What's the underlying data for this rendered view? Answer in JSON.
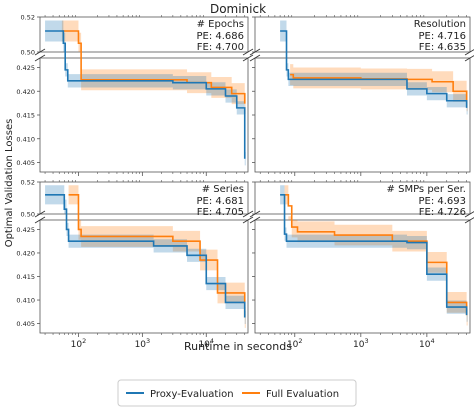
{
  "title": "Dominick",
  "ylabel": "Optimal Validation Losses",
  "xlabel": "Runtime in seconds",
  "legend": [
    {
      "name": "Proxy-Evaluation",
      "color": "#1f77b4"
    },
    {
      "name": "Full Evaluation",
      "color": "#ff7f0e"
    }
  ],
  "colors": {
    "proxy": "#1f77b4",
    "full": "#ff7f0e"
  },
  "chart_data": [
    {
      "type": "line",
      "title": "# Epochs",
      "annotations": [
        "PE: 4.686",
        "FE: 4.700"
      ],
      "xscale": "log",
      "xlim": [
        25,
        45000
      ],
      "xticks": [
        "10^2",
        "10^3",
        "10^4"
      ],
      "ylim_upper": [
        0.5,
        0.52
      ],
      "yticks_upper": [
        "0.52",
        "0.50"
      ],
      "ylim_lower": [
        0.403,
        0.427
      ],
      "yticks_lower": [
        "0.425",
        "0.420",
        "0.415",
        "0.410",
        "0.405"
      ],
      "series": [
        {
          "name": "Proxy-Evaluation",
          "x": [
            30,
            58,
            62,
            68,
            600,
            3000,
            10000,
            20000,
            30000,
            40000
          ],
          "y": [
            0.512,
            0.505,
            0.4245,
            0.4222,
            0.4222,
            0.4218,
            0.4205,
            0.419,
            0.4165,
            0.4058
          ]
        },
        {
          "name": "Full Evaluation",
          "x": [
            55,
            100,
            110,
            1000,
            5000,
            12000,
            25000,
            40000
          ],
          "y": [
            0.512,
            0.505,
            0.4224,
            0.4224,
            0.4218,
            0.4208,
            0.4195,
            0.4174
          ]
        }
      ]
    },
    {
      "type": "line",
      "title": "Resolution",
      "annotations": [
        "PE: 4.716",
        "FE: 4.635"
      ],
      "xscale": "log",
      "xlim": [
        25,
        45000
      ],
      "xticks": [
        "10^2",
        "10^3",
        "10^4"
      ],
      "ylim_upper": [
        0.5,
        0.52
      ],
      "ylim_lower": [
        0.403,
        0.427
      ],
      "series": [
        {
          "name": "Proxy-Evaluation",
          "x": [
            60,
            75,
            80,
            2500,
            5000,
            10000,
            20000,
            40000
          ],
          "y": [
            0.512,
            0.4245,
            0.4225,
            0.4225,
            0.4205,
            0.4195,
            0.418,
            0.4165
          ]
        },
        {
          "name": "Full Evaluation",
          "x": [
            85,
            95,
            1000,
            5000,
            12000,
            25000,
            40000
          ],
          "y": [
            0.4235,
            0.4228,
            0.4226,
            0.4225,
            0.422,
            0.42,
            0.418
          ]
        }
      ]
    },
    {
      "type": "line",
      "title": "# Series",
      "annotations": [
        "PE: 4.681",
        "FE: 4.705"
      ],
      "xscale": "log",
      "xlim": [
        25,
        45000
      ],
      "xticks": [
        "10^2",
        "10^3",
        "10^4"
      ],
      "ylim_upper": [
        0.5,
        0.52
      ],
      "yticks_upper": [
        "0.52",
        "0.50"
      ],
      "ylim_lower": [
        0.403,
        0.427
      ],
      "yticks_lower": [
        "0.425",
        "0.420",
        "0.415",
        "0.410",
        "0.405"
      ],
      "series": [
        {
          "name": "Proxy-Evaluation",
          "x": [
            30,
            60,
            65,
            70,
            1500,
            5000,
            10000,
            20000,
            40000
          ],
          "y": [
            0.512,
            0.503,
            0.425,
            0.4225,
            0.4215,
            0.4195,
            0.4135,
            0.4095,
            0.4063
          ]
        },
        {
          "name": "Full Evaluation",
          "x": [
            70,
            100,
            110,
            1500,
            3000,
            8000,
            15000,
            40000
          ],
          "y": [
            0.512,
            0.425,
            0.4235,
            0.4235,
            0.4225,
            0.4185,
            0.4115,
            0.4063
          ]
        }
      ]
    },
    {
      "type": "line",
      "title": "# SMPs per Ser.",
      "annotations": [
        "PE: 4.693",
        "FE: 4.726"
      ],
      "xscale": "log",
      "xlim": [
        25,
        45000
      ],
      "xticks": [
        "10^2",
        "10^3",
        "10^4"
      ],
      "ylim_upper": [
        0.5,
        0.52
      ],
      "ylim_lower": [
        0.403,
        0.427
      ],
      "series": [
        {
          "name": "Proxy-Evaluation",
          "x": [
            60,
            70,
            75,
            800,
            5000,
            10000,
            20000,
            40000
          ],
          "y": [
            0.512,
            0.424,
            0.4225,
            0.4225,
            0.4222,
            0.4155,
            0.4085,
            0.4068
          ]
        },
        {
          "name": "Full Evaluation",
          "x": [
            70,
            80,
            90,
            110,
            400,
            3000,
            10000,
            20000,
            40000
          ],
          "y": [
            0.512,
            0.43,
            0.4255,
            0.4245,
            0.4238,
            0.4225,
            0.418,
            0.4095,
            0.4068
          ]
        }
      ]
    }
  ]
}
